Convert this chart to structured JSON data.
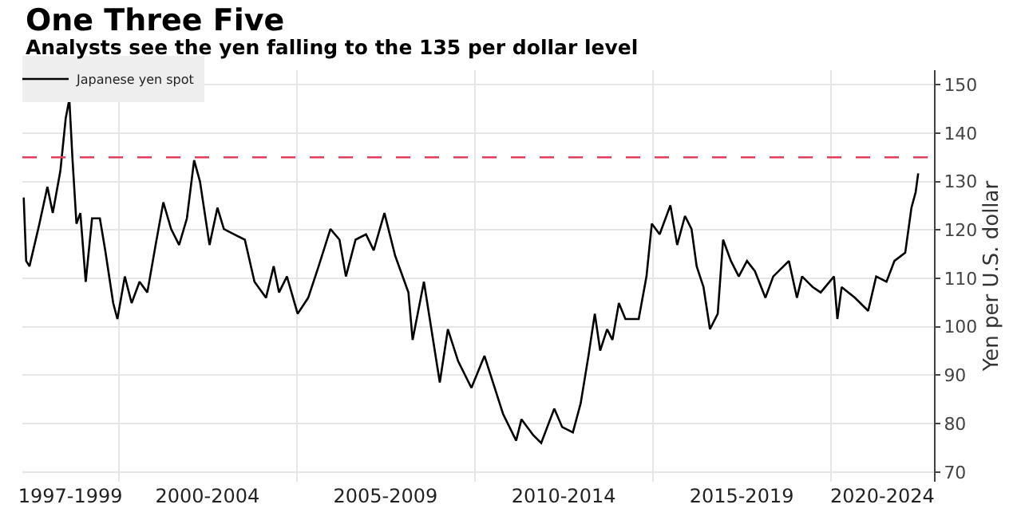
{
  "chart_data": {
    "type": "line",
    "title": "One Three Five",
    "subtitle": "Analysts see the yen falling to the 135 per dollar level",
    "ylabel": "Yen per U.S. dollar",
    "x": [
      "1997-05-03",
      "1997-05-28",
      "1997-07-01",
      "1997-10-11",
      "1998-01-01",
      "1998-02-25",
      "1998-05-14",
      "1998-07-08",
      "1998-08-14",
      "1998-09-16",
      "1998-10-26",
      "1998-12-05",
      "1999-01-29",
      "1999-04-04",
      "1999-06-23",
      "1999-08-17",
      "1999-11-07",
      "1999-12-20",
      "2000-03-05",
      "2000-05-14",
      "2000-08-03",
      "2000-10-22",
      "2001-01-15",
      "2001-04-04",
      "2001-06-23",
      "2001-09-13",
      "2001-12-02",
      "2002-02-14",
      "2002-04-15",
      "2002-07-22",
      "2002-10-11",
      "2002-12-16",
      "2003-04-01",
      "2003-07-19",
      "2003-10-26",
      "2004-02-21",
      "2004-05-10",
      "2004-07-04",
      "2004-09-23",
      "2005-01-11",
      "2005-04-29",
      "2005-08-14",
      "2005-12-13",
      "2006-03-16",
      "2006-05-21",
      "2006-08-28",
      "2006-12-13",
      "2007-03-02",
      "2007-06-20",
      "2007-10-08",
      "2008-02-21",
      "2008-04-04",
      "2008-07-29",
      "2008-12-13",
      "2009-01-08",
      "2009-04-01",
      "2009-07-15",
      "2009-11-28",
      "2010-04-11",
      "2010-10-19",
      "2011-03-02",
      "2011-04-26",
      "2011-08-25",
      "2011-11-14",
      "2012-03-27",
      "2012-06-16",
      "2012-10-04",
      "2012-12-23",
      "2013-03-13",
      "2013-05-17",
      "2013-07-11",
      "2013-09-20",
      "2013-11-14",
      "2014-01-19",
      "2014-03-27",
      "2014-08-10",
      "2014-10-29",
      "2014-12-23",
      "2015-03-13",
      "2015-07-01",
      "2015-09-09",
      "2015-11-28",
      "2016-02-03",
      "2016-03-27",
      "2016-06-05",
      "2016-08-10",
      "2016-10-29",
      "2016-12-23",
      "2017-03-13",
      "2017-06-02",
      "2017-08-25",
      "2017-11-14",
      "2018-03-02",
      "2018-05-21",
      "2018-10-29",
      "2019-01-19",
      "2019-03-13",
      "2019-07-01",
      "2019-09-20",
      "2020-02-03",
      "2020-03-09",
      "2020-04-22",
      "2020-09-05",
      "2021-01-19",
      "2021-04-11",
      "2021-07-26",
      "2021-10-15",
      "2022-02-03",
      "2022-04-08",
      "2022-05-21",
      "2022-06-16"
    ],
    "series": [
      {
        "name": "Japanese yen spot",
        "color": "#000000",
        "values": [
          126.7,
          113.6,
          112.5,
          121.3,
          128.9,
          123.5,
          132.2,
          143.1,
          147,
          134.4,
          121.3,
          123.5,
          109.3,
          122.4,
          122.4,
          115.8,
          104.9,
          101.6,
          110.4,
          104.9,
          109.3,
          107.1,
          116.9,
          125.7,
          120.2,
          116.9,
          122.4,
          134.4,
          130.0,
          116.9,
          124.6,
          120.2,
          119.1,
          118.0,
          109.3,
          106.0,
          112.5,
          107.1,
          110.4,
          102.7,
          106.0,
          112.5,
          120.2,
          118.0,
          110.4,
          118.0,
          119.1,
          115.8,
          123.5,
          114.7,
          107.1,
          97.3,
          109.3,
          91.8,
          88.5,
          99.5,
          92.9,
          87.4,
          94.0,
          82.0,
          76.5,
          80.9,
          77.6,
          76.0,
          83.1,
          79.3,
          78.2,
          84.2,
          94.0,
          102.7,
          95.1,
          99.5,
          97.3,
          104.9,
          101.6,
          101.6,
          110.4,
          121.3,
          119.1,
          125.1,
          116.9,
          122.9,
          120.2,
          112.5,
          108.2,
          99.5,
          102.7,
          118.0,
          113.6,
          110.4,
          113.6,
          111.5,
          106.0,
          110.4,
          113.6,
          106.0,
          110.4,
          108.2,
          107.1,
          110.4,
          101.6,
          108.2,
          106.0,
          103.3,
          110.4,
          109.3,
          113.6,
          115.3,
          124.6,
          127.8,
          131.7
        ]
      }
    ],
    "xlim": [
      "1997-04-19",
      "2022-11-25"
    ],
    "xticks": [
      {
        "value": "1998-08-25",
        "label": "1997-1999"
      },
      {
        "value": "2002-07-01",
        "label": "2000-2004"
      },
      {
        "value": "2007-07-01",
        "label": "2005-2009"
      },
      {
        "value": "2012-07-01",
        "label": "2010-2014"
      },
      {
        "value": "2017-07-01",
        "label": "2015-2019"
      },
      {
        "value": "2021-06-14",
        "label": "2020-2024"
      },
      {
        "value": "2000-01-01",
        "label": null
      },
      {
        "value": "2005-01-01",
        "label": null
      },
      {
        "value": "2010-01-01",
        "label": null
      },
      {
        "value": "2015-01-01",
        "label": null
      },
      {
        "value": "2020-01-01",
        "label": null
      }
    ],
    "ylim": [
      68,
      153
    ],
    "yticks": [
      70,
      80,
      90,
      100,
      110,
      120,
      130,
      140,
      150
    ],
    "ref_lines": [
      {
        "axis": "y",
        "value": 135,
        "color": "#e0405a",
        "line_style": "dashed"
      }
    ],
    "grid": true,
    "legend": "top left",
    "line_style": "solid",
    "marker": "none"
  }
}
